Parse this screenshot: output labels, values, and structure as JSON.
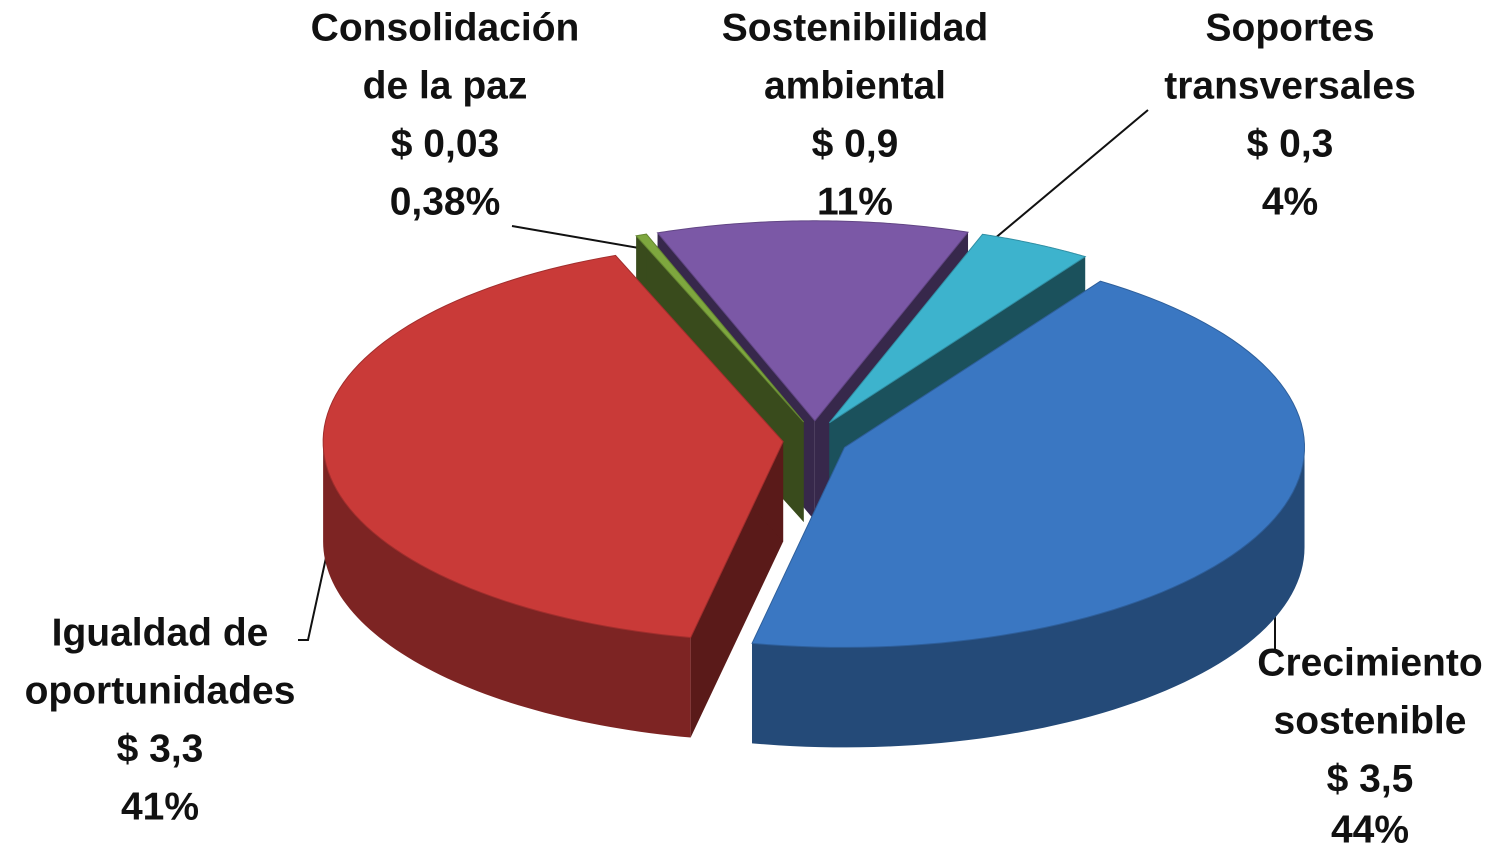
{
  "chart_data": {
    "type": "pie",
    "categories": [
      [
        "Sostenibilidad",
        "ambiental"
      ],
      [
        "Soportes",
        "transversales"
      ],
      [
        "Crecimiento",
        "sostenible"
      ],
      [
        "Igualdad de",
        "oportunidades"
      ],
      [
        "Consolidación",
        "de la paz"
      ]
    ],
    "values": [
      11,
      4,
      44,
      41,
      0.38
    ],
    "value_labels": [
      "11%",
      "4%",
      "44%",
      "41%",
      "0,38%"
    ],
    "amounts": [
      0.9,
      0.3,
      3.5,
      3.3,
      0.03
    ],
    "amount_labels": [
      "$ 0,9",
      "$ 0,3",
      "$ 3,5",
      "$ 3,3",
      "$ 0,03"
    ],
    "colors": [
      "#7b58a6",
      "#3db3cd",
      "#3a77c2",
      "#c93a38",
      "#7ea73e"
    ]
  }
}
